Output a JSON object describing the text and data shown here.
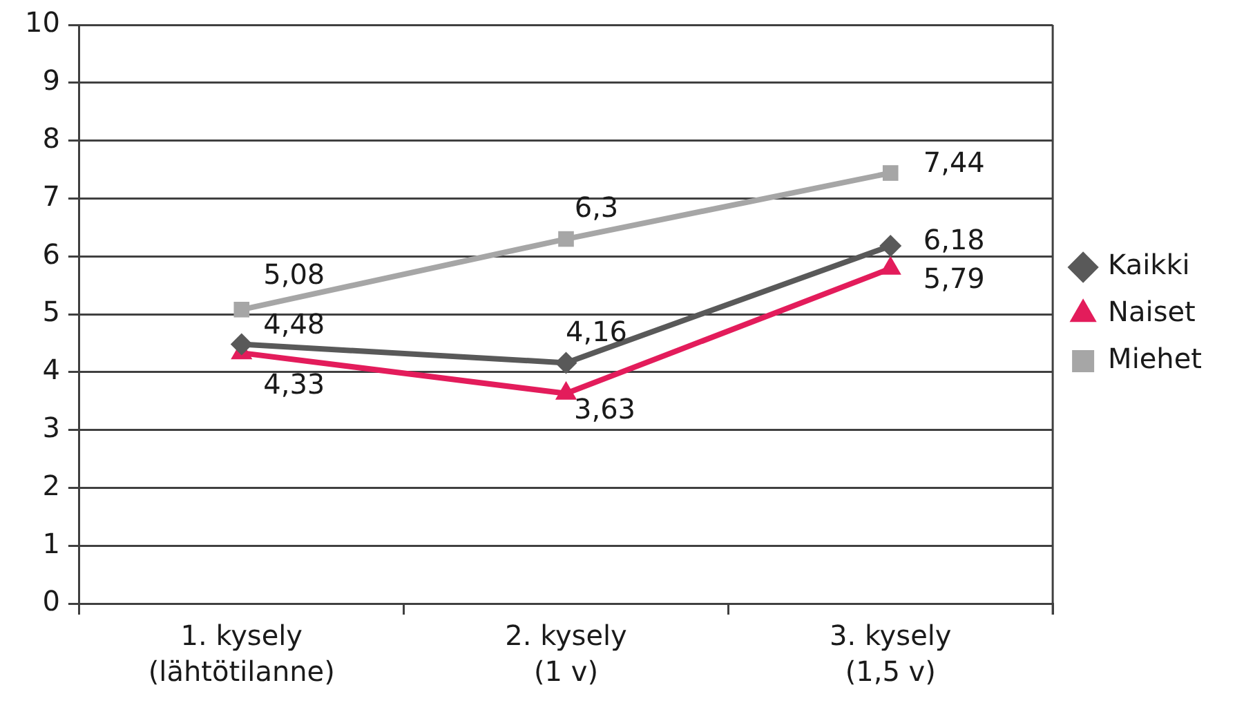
{
  "chart_data": {
    "type": "line",
    "categories": [
      "1. kysely\n(lähtötilanne)",
      "2. kysely\n(1 v)",
      "3. kysely\n(1,5 v)"
    ],
    "series": [
      {
        "name": "Kaikki",
        "color": "#595959",
        "marker": "diamond",
        "values": [
          4.48,
          4.16,
          6.18
        ],
        "value_labels": [
          "4,48",
          "4,16",
          "6,18"
        ]
      },
      {
        "name": "Naiset",
        "color": "#e31c5b",
        "marker": "triangle",
        "values": [
          4.33,
          3.63,
          5.79
        ],
        "value_labels": [
          "4,33",
          "3,63",
          "5,79"
        ]
      },
      {
        "name": "Miehet",
        "color": "#a6a6a6",
        "marker": "square",
        "values": [
          5.08,
          6.3,
          7.44
        ],
        "value_labels": [
          "5,08",
          "6,3",
          "7,44"
        ]
      }
    ],
    "ylim": [
      0,
      10
    ],
    "yticks": [
      0,
      1,
      2,
      3,
      4,
      5,
      6,
      7,
      8,
      9,
      10
    ],
    "grid": "y",
    "legend": "right"
  }
}
